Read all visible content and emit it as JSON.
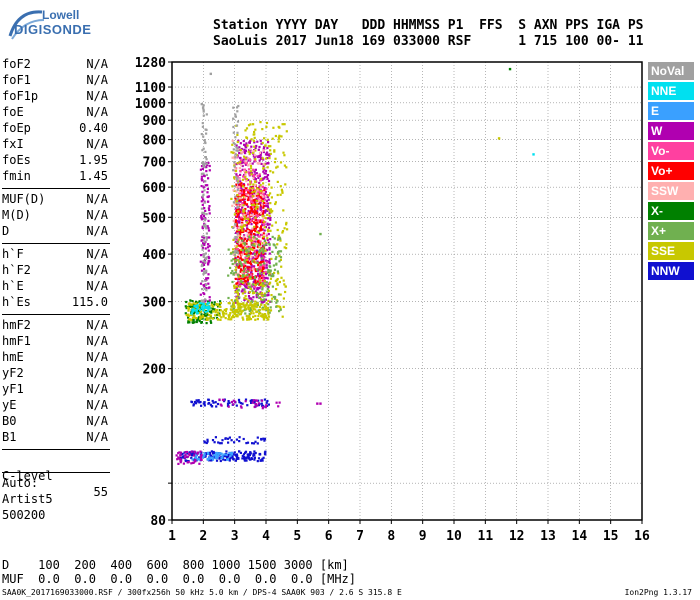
{
  "logo": {
    "line1": "Lowell",
    "line2": "DIGISONDE"
  },
  "header": {
    "labels": "Station YYYY DAY   DDD HHMMSS P1  FFS  S AXN PPS IGA PS",
    "values": "SaoLuis 2017 Jun18 169 033000 RSF      1 715 100 00- 11"
  },
  "params_a": [
    {
      "k": "foF2",
      "v": "N/A"
    },
    {
      "k": "foF1",
      "v": "N/A"
    },
    {
      "k": "foF1p",
      "v": "N/A"
    },
    {
      "k": "foE",
      "v": "N/A"
    },
    {
      "k": "foEp",
      "v": "0.40"
    },
    {
      "k": "fxI",
      "v": "N/A"
    },
    {
      "k": "foEs",
      "v": "1.95"
    },
    {
      "k": "fmin",
      "v": "1.45"
    }
  ],
  "params_b": [
    {
      "k": "MUF(D)",
      "v": "N/A"
    },
    {
      "k": "M(D)",
      "v": "N/A"
    },
    {
      "k": "D",
      "v": "N/A"
    }
  ],
  "params_c": [
    {
      "k": "h`F",
      "v": "N/A"
    },
    {
      "k": "h`F2",
      "v": "N/A"
    },
    {
      "k": "h`E",
      "v": "N/A"
    },
    {
      "k": "h`Es",
      "v": "115.0"
    }
  ],
  "params_d": [
    {
      "k": "hmF2",
      "v": "N/A"
    },
    {
      "k": "hmF1",
      "v": "N/A"
    },
    {
      "k": "hmE",
      "v": "N/A"
    },
    {
      "k": "yF2",
      "v": "N/A"
    },
    {
      "k": "yF1",
      "v": "N/A"
    },
    {
      "k": "yE",
      "v": "N/A"
    },
    {
      "k": "B0",
      "v": "N/A"
    },
    {
      "k": "B1",
      "v": "N/A"
    }
  ],
  "clevel": {
    "k": "C-level",
    "v": "55"
  },
  "auto": [
    "Auto:",
    "Artist5",
    "500200"
  ],
  "legend": [
    {
      "label": "NoVal",
      "color": "#a0a0a0"
    },
    {
      "label": "NNE",
      "color": "#00e0f0"
    },
    {
      "label": "E",
      "color": "#3aa0ff"
    },
    {
      "label": "W",
      "color": "#b000b0"
    },
    {
      "label": "Vo-",
      "color": "#ff40a0"
    },
    {
      "label": "Vo+",
      "color": "#ff0000"
    },
    {
      "label": "SSW",
      "color": "#ffb0b0"
    },
    {
      "label": "X-",
      "color": "#008000"
    },
    {
      "label": "X+",
      "color": "#70b050"
    },
    {
      "label": "SSE",
      "color": "#c8c800"
    },
    {
      "label": "NNW",
      "color": "#1010d0"
    }
  ],
  "bottom": {
    "d_line": "D    100  200  400  600  800 1000 1500 3000 [km]",
    "muf_line": "MUF  0.0  0.0  0.0  0.0  0.0  0.0  0.0  0.0 [MHz]"
  },
  "footer": {
    "left": "SAA0K_2017169033000.RSF / 300fx256h 50 kHz 5.0 km / DPS-4 SAA0K 903 / 2.6 S 315.8 E",
    "right": "Ion2Png 1.3.17"
  },
  "chart_data": {
    "type": "scatter",
    "title": "",
    "xlabel": "",
    "ylabel": "",
    "xlim": [
      1,
      16
    ],
    "ylim": [
      80,
      1280
    ],
    "y_scale": "log",
    "x_ticks": [
      1,
      2,
      3,
      4,
      5,
      6,
      7,
      8,
      9,
      10,
      11,
      12,
      13,
      14,
      15,
      16
    ],
    "y_ticks": [
      80,
      100,
      200,
      300,
      400,
      500,
      600,
      700,
      800,
      900,
      1000,
      1100,
      1280
    ],
    "y_tick_labels": [
      "80",
      "",
      "200",
      "300",
      "400",
      "500",
      "600",
      "700",
      "800",
      "900",
      "1000",
      "1100",
      "1280"
    ],
    "grid": true,
    "clusters": [
      {
        "name": "W",
        "color": "#b000b0",
        "x": [
          2.9,
          4.2
        ],
        "y": [
          300,
          800
        ],
        "n": 550,
        "seed": 11
      },
      {
        "name": "Vo+",
        "color": "#ff0000",
        "x": [
          2.9,
          4.0
        ],
        "y": [
          330,
          620
        ],
        "n": 380,
        "seed": 12
      },
      {
        "name": "Vo-",
        "color": "#ff40a0",
        "x": [
          2.9,
          4.1
        ],
        "y": [
          330,
          720
        ],
        "n": 140,
        "seed": 13
      },
      {
        "name": "SSE",
        "color": "#c8c800",
        "x": [
          2.7,
          4.8
        ],
        "y": [
          270,
          900
        ],
        "n": 380,
        "seed": 14
      },
      {
        "name": "SSW",
        "color": "#ffb0b0",
        "x": [
          2.8,
          4.0
        ],
        "y": [
          350,
          800
        ],
        "n": 90,
        "seed": 15
      },
      {
        "name": "X+",
        "color": "#70b050",
        "x": [
          2.6,
          4.6
        ],
        "y": [
          280,
          450
        ],
        "n": 180,
        "seed": 16
      },
      {
        "name": "X-",
        "color": "#008000",
        "x": [
          1.3,
          2.6
        ],
        "y": [
          265,
          305
        ],
        "n": 110,
        "seed": 17
      },
      {
        "name": "SSE-base",
        "color": "#c8c800",
        "x": [
          1.2,
          4.3
        ],
        "y": [
          270,
          300
        ],
        "n": 200,
        "seed": 18
      },
      {
        "name": "NNE",
        "color": "#00e0f0",
        "x": [
          1.5,
          2.3
        ],
        "y": [
          280,
          300
        ],
        "n": 40,
        "seed": 19
      },
      {
        "name": "W-col2",
        "color": "#b000b0",
        "x": [
          1.85,
          2.2
        ],
        "y": [
          300,
          700
        ],
        "n": 120,
        "seed": 20
      },
      {
        "name": "NoVal-col2",
        "color": "#a0a0a0",
        "x": [
          1.9,
          2.1
        ],
        "y": [
          300,
          1000
        ],
        "n": 90,
        "seed": 21
      },
      {
        "name": "NoVal-col3",
        "color": "#a0a0a0",
        "x": [
          2.9,
          3.1
        ],
        "y": [
          400,
          1000
        ],
        "n": 50,
        "seed": 22
      },
      {
        "name": "NNW-E1",
        "color": "#1010d0",
        "x": [
          1.0,
          4.2
        ],
        "y": [
          115,
          122
        ],
        "n": 180,
        "seed": 23
      },
      {
        "name": "E-E1",
        "color": "#3aa0ff",
        "x": [
          1.5,
          3.0
        ],
        "y": [
          116,
          121
        ],
        "n": 60,
        "seed": 24
      },
      {
        "name": "W-E1",
        "color": "#b000b0",
        "x": [
          1.0,
          2.0
        ],
        "y": [
          113,
          122
        ],
        "n": 45,
        "seed": 25
      },
      {
        "name": "NNW-E2",
        "color": "#1010d0",
        "x": [
          1.3,
          4.3
        ],
        "y": [
          160,
          167
        ],
        "n": 70,
        "seed": 26
      },
      {
        "name": "W-E2",
        "color": "#b000b0",
        "x": [
          2.2,
          4.8
        ],
        "y": [
          158,
          167
        ],
        "n": 30,
        "seed": 27
      },
      {
        "name": "NNW-E3",
        "color": "#1010d0",
        "x": [
          1.8,
          4.2
        ],
        "y": [
          128,
          133
        ],
        "n": 35,
        "seed": 28
      }
    ],
    "points": [
      {
        "x": 11.75,
        "y": 1235,
        "color": "#008000"
      },
      {
        "x": 12.5,
        "y": 737,
        "color": "#00e0f0"
      },
      {
        "x": 11.4,
        "y": 812,
        "color": "#c8c800"
      },
      {
        "x": 2.2,
        "y": 1200,
        "color": "#a0a0a0"
      },
      {
        "x": 5.6,
        "y": 163,
        "color": "#b000b0"
      },
      {
        "x": 5.7,
        "y": 163,
        "color": "#b000b0"
      },
      {
        "x": 5.7,
        "y": 455,
        "color": "#70b050"
      }
    ]
  }
}
